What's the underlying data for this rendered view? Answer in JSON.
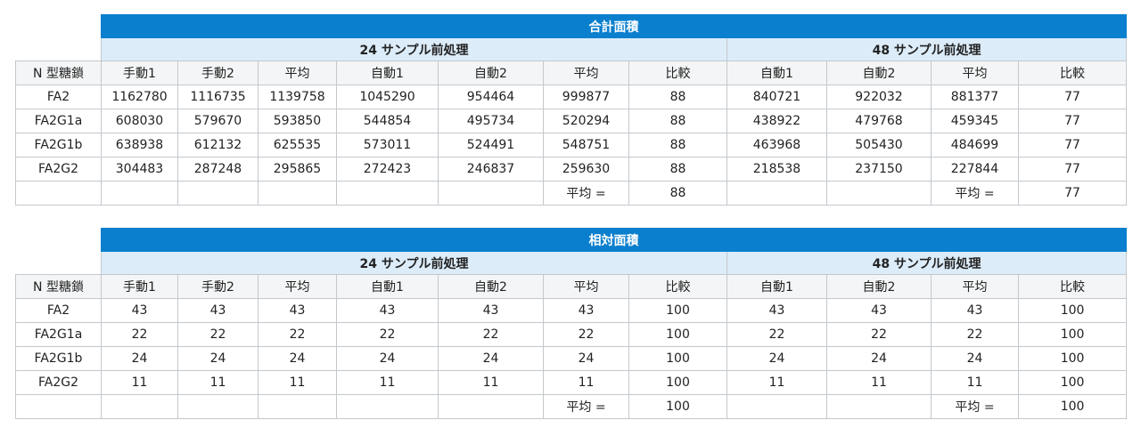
{
  "tables": [
    {
      "title": "合計面積",
      "groups": [
        "24 サンプル前処理",
        "48 サンプル前処理"
      ],
      "columns": [
        "N 型糖鎖",
        "手動1",
        "手動2",
        "平均",
        "自動1",
        "自動2",
        "平均",
        "比較",
        "自動1",
        "自動2",
        "平均",
        "比較"
      ],
      "rows": [
        [
          "FA2",
          "1162780",
          "1116735",
          "1139758",
          "1045290",
          "954464",
          "999877",
          "88",
          "840721",
          "922032",
          "881377",
          "77"
        ],
        [
          "FA2G1a",
          "608030",
          "579670",
          "593850",
          "544854",
          "495734",
          "520294",
          "88",
          "438922",
          "479768",
          "459345",
          "77"
        ],
        [
          "FA2G1b",
          "638938",
          "612132",
          "625535",
          "573011",
          "524491",
          "548751",
          "88",
          "463968",
          "505430",
          "484699",
          "77"
        ],
        [
          "FA2G2",
          "304483",
          "287248",
          "295865",
          "272423",
          "246837",
          "259630",
          "88",
          "218538",
          "237150",
          "227844",
          "77"
        ]
      ],
      "summary": {
        "label_24": "平均 =",
        "value_24": "88",
        "label_48": "平均 =",
        "value_48": "77"
      }
    },
    {
      "title": "相対面積",
      "groups": [
        "24 サンプル前処理",
        "48 サンプル前処理"
      ],
      "columns": [
        "N 型糖鎖",
        "手動1",
        "手動2",
        "平均",
        "自動1",
        "自動2",
        "平均",
        "比較",
        "自動1",
        "自動2",
        "平均",
        "比較"
      ],
      "rows": [
        [
          "FA2",
          "43",
          "43",
          "43",
          "43",
          "43",
          "43",
          "100",
          "43",
          "43",
          "43",
          "100"
        ],
        [
          "FA2G1a",
          "22",
          "22",
          "22",
          "22",
          "22",
          "22",
          "100",
          "22",
          "22",
          "22",
          "100"
        ],
        [
          "FA2G1b",
          "24",
          "24",
          "24",
          "24",
          "24",
          "24",
          "100",
          "24",
          "24",
          "24",
          "100"
        ],
        [
          "FA2G2",
          "11",
          "11",
          "11",
          "11",
          "11",
          "11",
          "100",
          "11",
          "11",
          "11",
          "100"
        ]
      ],
      "summary": {
        "label_24": "平均 =",
        "value_24": "100",
        "label_48": "平均 =",
        "value_48": "100"
      }
    }
  ]
}
